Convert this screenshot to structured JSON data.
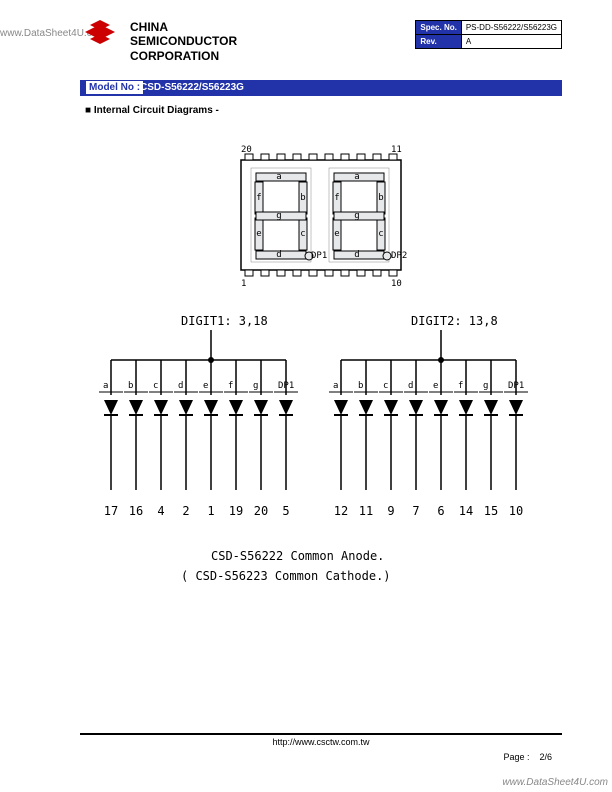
{
  "watermarks": {
    "top_left": "www.DataSheet4U.com",
    "bottom_right": "www.DataSheet4U.com"
  },
  "header": {
    "company_line1": "CHINA",
    "company_line2": "SEMICONDUCTOR",
    "company_line3": "CORPORATION",
    "logo_color": "#cc0000"
  },
  "spec": {
    "spec_no_label": "Spec. No.",
    "spec_no_value": "PS-DD-S56222/S56223G",
    "rev_label": "Rev.",
    "rev_value": "A"
  },
  "model": {
    "label": "Model No :",
    "value": "CSD-S56222/S56223G",
    "bar_color": "#2233aa"
  },
  "section_title": "Internal Circuit Diagrams -",
  "display": {
    "pin_top_left": "20",
    "pin_top_right": "11",
    "pin_bottom_left": "1",
    "pin_bottom_right": "10",
    "segments": [
      "a",
      "b",
      "c",
      "d",
      "e",
      "f",
      "g"
    ],
    "dp1": "DP1",
    "dp2": "DP2"
  },
  "circuit": {
    "digit1_label": "DIGIT1: 3,18",
    "digit2_label": "DIGIT2: 13,8",
    "segments": [
      "a",
      "b",
      "c",
      "d",
      "e",
      "f",
      "g",
      "DP1"
    ],
    "digit1_pins": [
      "17",
      "16",
      "4",
      "2",
      "1",
      "19",
      "20",
      "5"
    ],
    "digit2_pins": [
      "12",
      "11",
      "9",
      "7",
      "6",
      "14",
      "15",
      "10"
    ],
    "note1": "CSD-S56222 Common Anode.",
    "note2": "( CSD-S56223 Common Cathode.)"
  },
  "footer": {
    "url": "http://www.csctw.com.tw",
    "page_label": "Page :",
    "page_value": "2/6"
  },
  "colors": {
    "accent": "#2233aa",
    "line": "#000000",
    "fill_light": "#e6e8ea"
  }
}
